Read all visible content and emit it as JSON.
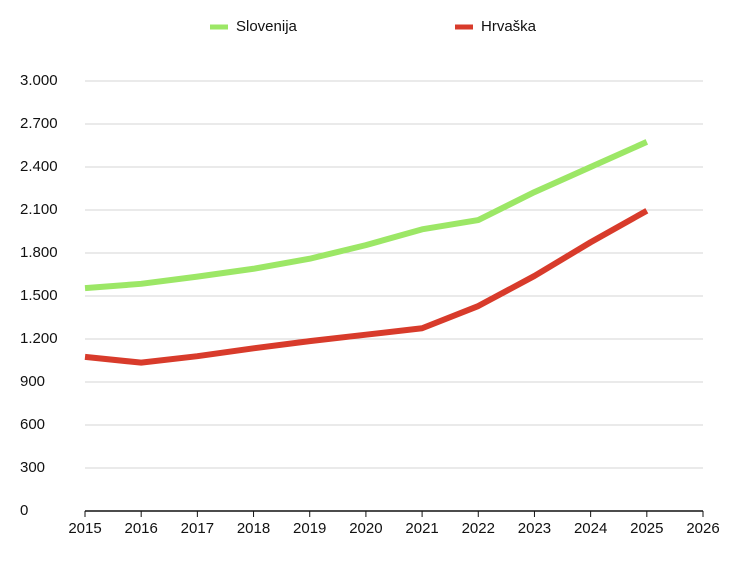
{
  "chart_data": {
    "type": "line",
    "x": [
      2015,
      2016,
      2017,
      2018,
      2019,
      2020,
      2021,
      2022,
      2023,
      2024,
      2025
    ],
    "series": [
      {
        "name": "Slovenija",
        "color": "#9ce766",
        "values": [
          1555,
          1585,
          1635,
          1690,
          1760,
          1855,
          1965,
          2030,
          2225,
          2400,
          2575
        ]
      },
      {
        "name": "Hrvaška",
        "color": "#d83b2b",
        "values": [
          1075,
          1035,
          1080,
          1135,
          1185,
          1230,
          1275,
          1430,
          1640,
          1875,
          2095
        ]
      }
    ],
    "xlim": [
      2015,
      2026
    ],
    "xticks": [
      2015,
      2016,
      2017,
      2018,
      2019,
      2020,
      2021,
      2022,
      2023,
      2024,
      2025,
      2026
    ],
    "ylim": [
      0,
      3000
    ],
    "yticks": [
      0,
      300,
      600,
      900,
      {
        "value": 1200,
        "label": "1.200"
      },
      {
        "value": 1500,
        "label": "1.500"
      },
      {
        "value": 1800,
        "label": "1.800"
      },
      {
        "value": 2100,
        "label": "2.100"
      },
      {
        "value": 2400,
        "label": "2.400"
      },
      {
        "value": 2700,
        "label": "2.700"
      },
      {
        "value": 3000,
        "label": "3.000"
      }
    ],
    "grid": true,
    "legend": "top"
  }
}
